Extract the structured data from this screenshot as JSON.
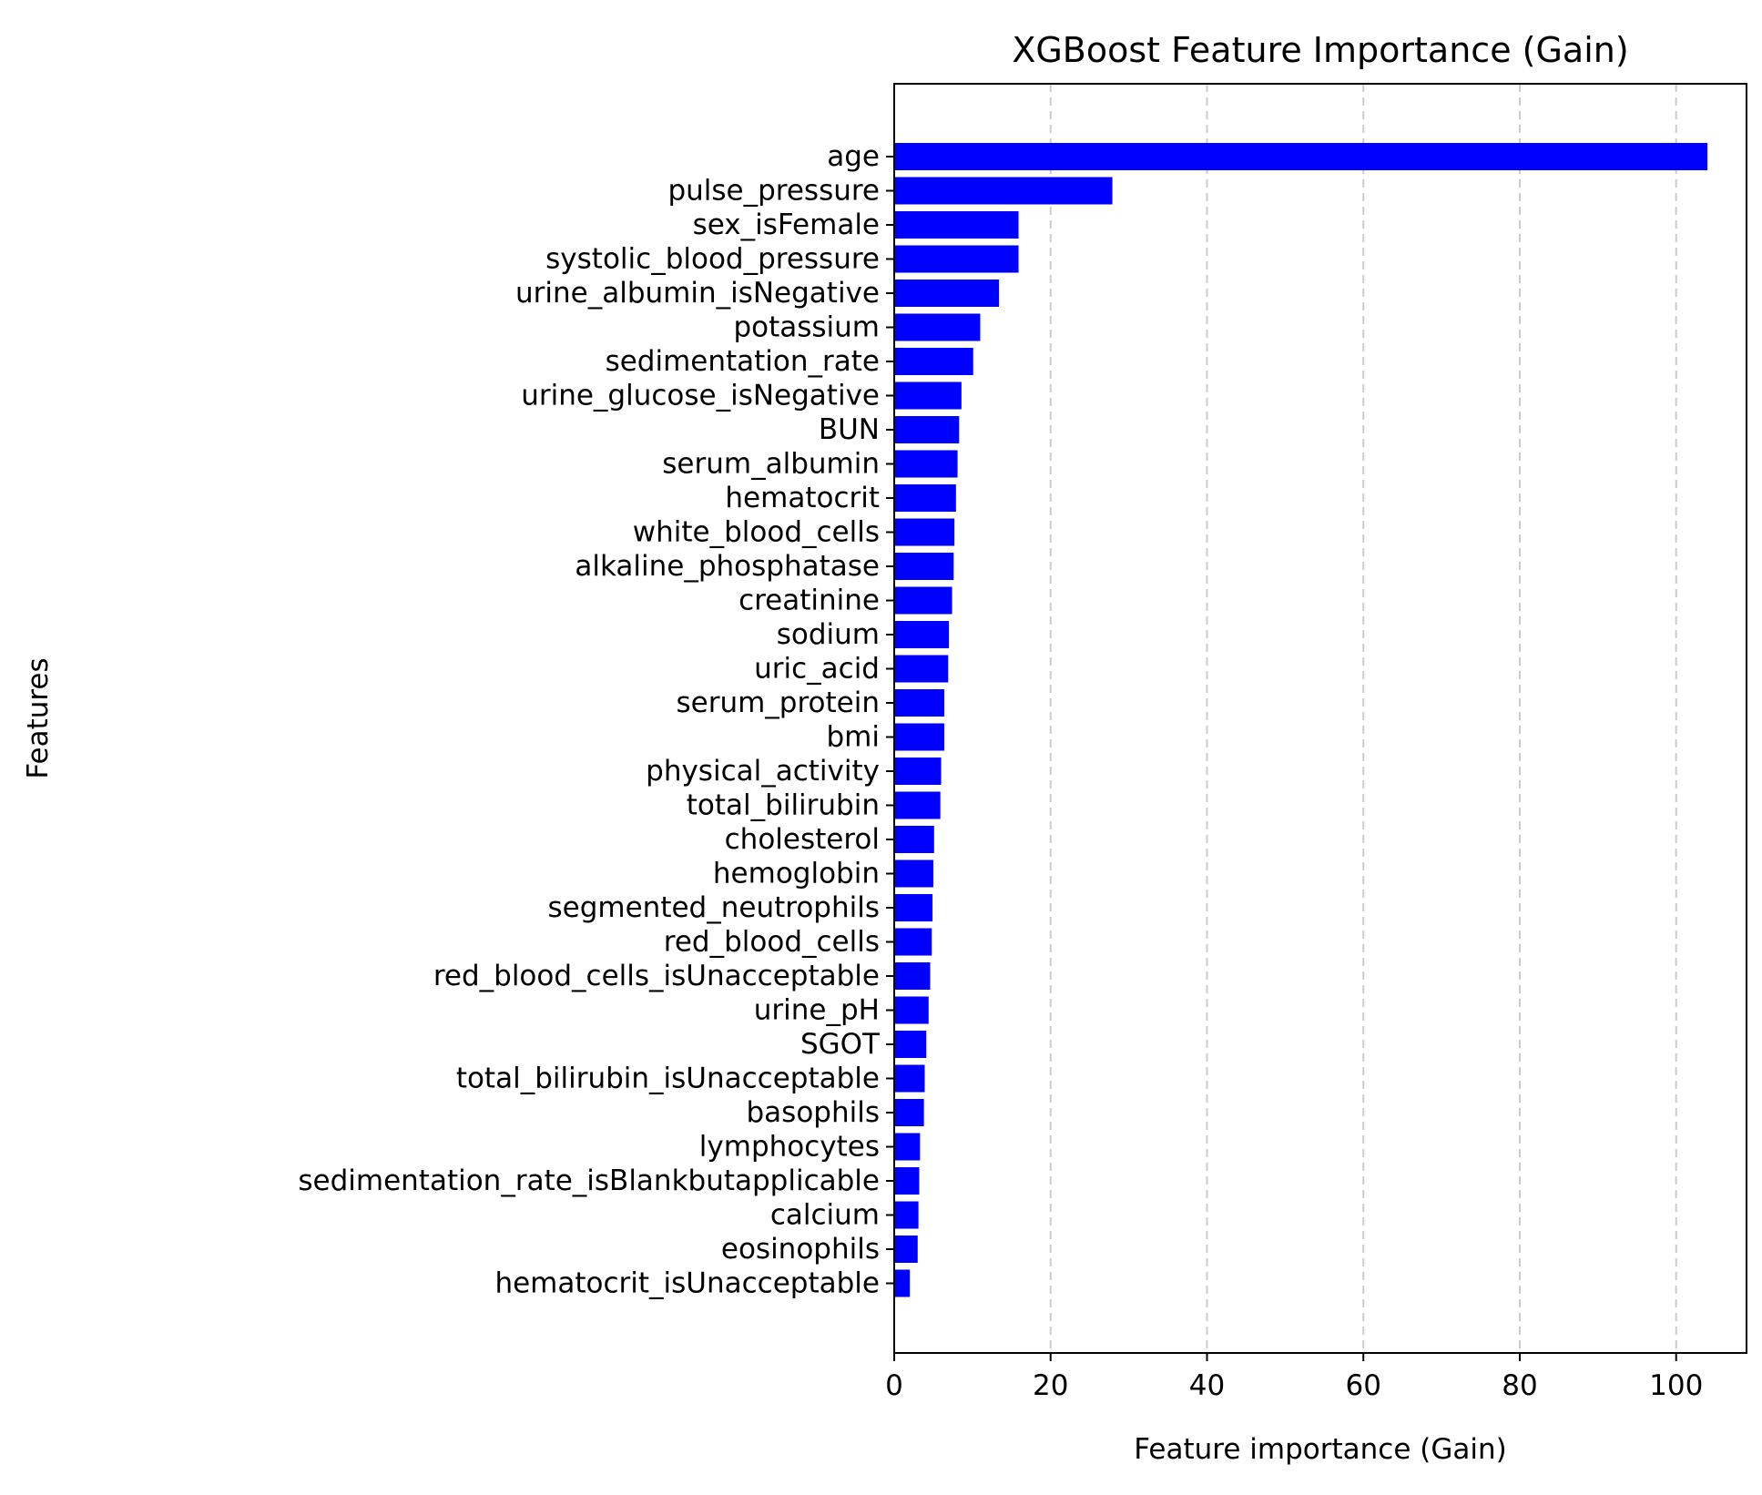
{
  "chart_data": {
    "type": "bar",
    "orientation": "horizontal",
    "title": "XGBoost Feature Importance (Gain)",
    "xlabel": "Feature importance (Gain)",
    "ylabel": "Features",
    "xlim": [
      0,
      109
    ],
    "xticks": [
      0,
      20,
      40,
      60,
      80,
      100
    ],
    "grid": {
      "x": true,
      "y": false,
      "style": "dashed"
    },
    "bar_color": "#0000ff",
    "categories": [
      "age",
      "pulse_pressure",
      "sex_isFemale",
      "systolic_blood_pressure",
      "urine_albumin_isNegative",
      "potassium",
      "sedimentation_rate",
      "urine_glucose_isNegative",
      "BUN",
      "serum_albumin",
      "hematocrit",
      "white_blood_cells",
      "alkaline_phosphatase",
      "creatinine",
      "sodium",
      "uric_acid",
      "serum_protein",
      "bmi",
      "physical_activity",
      "total_bilirubin",
      "cholesterol",
      "hemoglobin",
      "segmented_neutrophils",
      "red_blood_cells",
      "red_blood_cells_isUnacceptable",
      "urine_pH",
      "SGOT",
      "total_bilirubin_isUnacceptable",
      "basophils",
      "lymphocytes",
      "sedimentation_rate_isBlankbutapplicable",
      "calcium",
      "eosinophils",
      "hematocrit_isUnacceptable"
    ],
    "values": [
      104.0,
      27.9,
      15.9,
      15.9,
      13.4,
      11.0,
      10.1,
      8.6,
      8.3,
      8.1,
      7.9,
      7.7,
      7.6,
      7.4,
      7.0,
      6.9,
      6.4,
      6.4,
      6.0,
      5.9,
      5.1,
      5.0,
      4.9,
      4.8,
      4.6,
      4.4,
      4.1,
      3.9,
      3.8,
      3.3,
      3.2,
      3.1,
      3.0,
      2.0
    ]
  }
}
